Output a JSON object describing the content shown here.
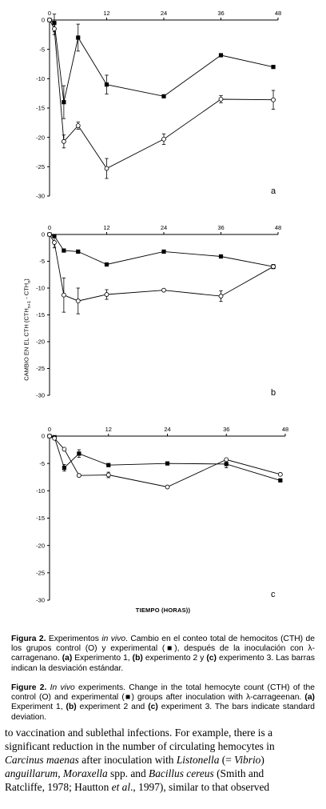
{
  "chart_data": [
    {
      "type": "line",
      "panel_label": "a",
      "x_ticks": [
        0,
        12,
        24,
        36,
        48
      ],
      "y_ticks": [
        0,
        -5,
        -10,
        -15,
        -20,
        -25,
        -30
      ],
      "xlim": [
        0,
        48
      ],
      "ylim": [
        -30,
        0
      ],
      "series": [
        {
          "marker": "filled-square",
          "x": [
            0,
            1,
            3,
            6,
            12,
            24,
            36,
            47
          ],
          "y": [
            0,
            -0.5,
            -14,
            -3,
            -11,
            -13,
            -6,
            -8
          ],
          "err": [
            0,
            1.5,
            2.8,
            2.3,
            1.6,
            0,
            0,
            0
          ]
        },
        {
          "marker": "open-circle",
          "x": [
            0,
            1,
            3,
            6,
            12,
            24,
            36,
            47
          ],
          "y": [
            0,
            -1.5,
            -20.7,
            -18,
            -25.3,
            -20.3,
            -13.5,
            -13.6
          ],
          "err": [
            0,
            1,
            1.1,
            0.6,
            1.7,
            0.9,
            0.6,
            1.6
          ]
        }
      ]
    },
    {
      "type": "line",
      "panel_label": "b",
      "x_ticks": [
        0,
        12,
        24,
        36,
        48
      ],
      "y_ticks": [
        0,
        -5,
        -10,
        -15,
        -20,
        -25,
        -30
      ],
      "xlim": [
        0,
        48
      ],
      "ylim": [
        -30,
        0
      ],
      "series": [
        {
          "marker": "filled-square",
          "x": [
            0,
            1,
            3,
            6,
            12,
            24,
            36,
            47
          ],
          "y": [
            0,
            -0.3,
            -3,
            -3.2,
            -5.6,
            -3.2,
            -4.1,
            -6
          ],
          "err": [
            0,
            0,
            0,
            0,
            0,
            0,
            0,
            0.4
          ]
        },
        {
          "marker": "open-circle",
          "x": [
            0,
            1,
            3,
            6,
            12,
            24,
            36,
            47
          ],
          "y": [
            0,
            -1.5,
            -11.3,
            -12.4,
            -11.2,
            -10.4,
            -11.5,
            -6
          ],
          "err": [
            0,
            1,
            3.2,
            2.4,
            0.9,
            0,
            1,
            0
          ]
        }
      ]
    },
    {
      "type": "line",
      "panel_label": "c",
      "x_ticks": [
        0,
        12,
        24,
        36,
        48
      ],
      "y_ticks": [
        0,
        -5,
        -10,
        -15,
        -20,
        -25,
        -30
      ],
      "xlim": [
        0,
        48
      ],
      "ylim": [
        -30,
        0
      ],
      "series": [
        {
          "marker": "filled-square",
          "x": [
            0,
            1,
            3,
            6,
            12,
            24,
            36,
            47
          ],
          "y": [
            0,
            -0.2,
            -5.8,
            -3.2,
            -5.3,
            -5,
            -5.1,
            -8.1
          ],
          "err": [
            0,
            0,
            0.6,
            0.7,
            0,
            0,
            0.7,
            0
          ]
        },
        {
          "marker": "open-circle",
          "x": [
            0,
            1,
            3,
            6,
            12,
            24,
            36,
            47
          ],
          "y": [
            0,
            -0.4,
            -2.4,
            -7.2,
            -7.1,
            -9.3,
            -4.3,
            -7
          ],
          "err": [
            0,
            0,
            0,
            0,
            0.5,
            0,
            0,
            0
          ]
        }
      ]
    }
  ],
  "axes": {
    "xlabel": "TIEMPO (HORAS))",
    "ylabel_main": "CAMBIO EN EL CTH (CTH",
    "ylabel_sub1": "n+1",
    "ylabel_mid": " - CTH",
    "ylabel_sub2": "n",
    "ylabel_end": ")"
  },
  "caption_es": {
    "fig": "Figura 2.",
    "t1": " Experimentos ",
    "vivo": "in vivo",
    "t2": ". Cambio en el conteo total de hemocitos (CTH) de los grupos control (O) y experimental (■), después de la inoculación con λ-carragenano. ",
    "la": "(a)",
    "t3": " Experimento 1, ",
    "lb": "(b)",
    "t4": " experimento 2 y ",
    "lc": "(c)",
    "t5": " experimento 3. Las barras indican la desviación estándar."
  },
  "caption_en": {
    "fig": "Figure 2.",
    "vivo": "In vivo",
    "t1": " experiments. Change in the total hemocyte count (CTH) of the control (O) and experimental (■) groups after inoculation with λ-carrageenan. ",
    "la": "(a)",
    "t2": " Experiment 1, ",
    "lb": "(b)",
    "t3": " experiment 2 and ",
    "lc": "(c)",
    "t4": " experiment 3. The bars indicate standard deviation."
  },
  "body_text": {
    "l1": "to vaccination and sublethal infections. For example, there is a",
    "l2": "significant reduction in the number of circulating hemocytes in",
    "l3_i1": "Carcinus maenas",
    "l3_t1": " after inoculation with ",
    "l3_i2": "Listonella",
    "l3_t2": " (= ",
    "l3_i3": "Vibrio",
    "l3_t3": ")",
    "l4_i1": "anguillarum",
    "l4_t1": ", ",
    "l4_i2": "Moraxella",
    "l4_t2": " spp. and ",
    "l4_i3": "Bacillus cereus",
    "l4_t3": " (Smith and",
    "l5_t1": "Ratcliffe, 1978; Hautton ",
    "l5_i1": "et al",
    "l5_t2": "., 1997), similar to that observed"
  }
}
